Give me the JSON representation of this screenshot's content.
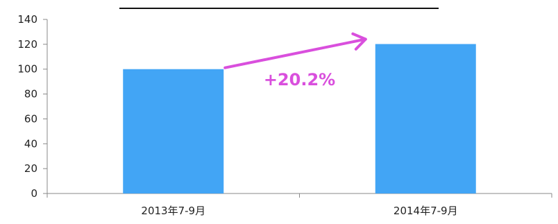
{
  "chart_data": {
    "type": "bar",
    "title": "",
    "xlabel": "",
    "ylabel": "",
    "categories": [
      "2013年7-9月",
      "2014年7-9月"
    ],
    "values": [
      100,
      120.2
    ],
    "ylim": [
      0,
      140
    ],
    "yticks": [
      0,
      20,
      40,
      60,
      80,
      100,
      120,
      140
    ],
    "grid": false,
    "legend": "none",
    "bar_color": "#42A5F5",
    "annotation": {
      "text": "+20.2%",
      "color": "#D94FDD",
      "from_category": "2013年7-9月",
      "to_category": "2014年7-9月"
    }
  }
}
